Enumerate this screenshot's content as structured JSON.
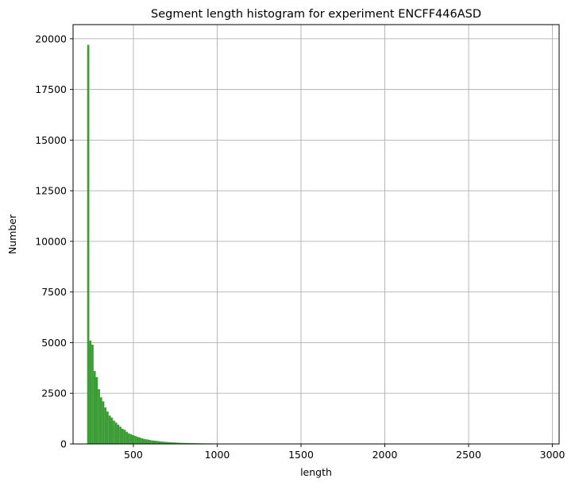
{
  "chart_data": {
    "type": "bar",
    "subtype": "histogram",
    "title": "Segment length histogram for experiment ENCFF446ASD",
    "xlabel": "length",
    "ylabel": "Number",
    "xlim": [
      140,
      3040
    ],
    "ylim": [
      0,
      20700
    ],
    "x_ticks": [
      500,
      1000,
      1500,
      2000,
      2500,
      3000
    ],
    "y_ticks": [
      0,
      2500,
      5000,
      7500,
      10000,
      12500,
      15000,
      17500,
      20000
    ],
    "grid": true,
    "bar_color": "#3b9b35",
    "bin_start": 224,
    "bin_width": 12.8,
    "values": [
      19700,
      5100,
      4900,
      3600,
      3300,
      2700,
      2300,
      2100,
      1800,
      1600,
      1400,
      1300,
      1150,
      1050,
      950,
      850,
      750,
      700,
      600,
      520,
      480,
      430,
      390,
      350,
      320,
      280,
      250,
      230,
      210,
      190,
      170,
      160,
      150,
      135,
      120,
      110,
      100,
      95,
      85,
      80,
      72,
      68,
      60,
      56,
      52,
      48,
      45,
      42,
      40,
      38,
      36,
      34,
      32,
      30,
      28,
      26,
      25,
      24,
      22,
      21,
      20,
      19,
      18,
      17,
      16,
      15,
      14,
      13,
      12,
      11,
      10,
      10,
      9,
      9,
      8,
      8,
      7,
      7,
      6,
      6,
      5,
      5,
      5,
      4,
      4,
      4,
      3,
      3,
      3,
      3,
      2,
      2,
      2,
      2,
      2,
      2,
      1,
      1,
      1,
      1,
      1,
      1,
      1,
      1,
      1
    ]
  }
}
